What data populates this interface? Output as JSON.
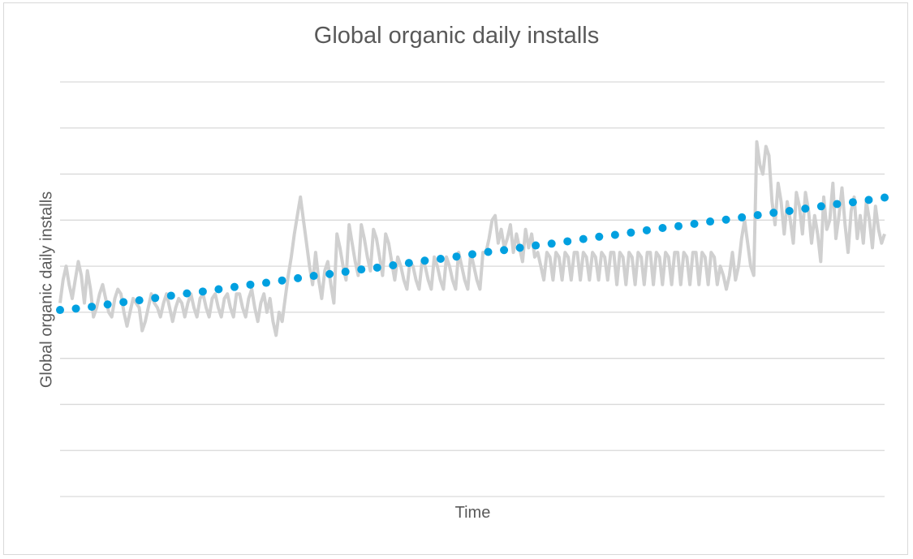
{
  "chart_data": {
    "type": "line",
    "title": "Global organic daily installs",
    "xlabel": "Time",
    "ylabel": "Global organic daily installs",
    "ylim": [
      0,
      9
    ],
    "grid": true,
    "y_tick_labels_shown": false,
    "x_tick_labels_shown": false,
    "legend": "none",
    "series": [
      {
        "style": "solid",
        "color": "#d0d0d0",
        "values": [
          4.2,
          4.7,
          5.0,
          4.6,
          4.3,
          4.7,
          5.1,
          4.8,
          4.2,
          4.9,
          4.5,
          3.9,
          4.1,
          4.4,
          4.6,
          4.3,
          4.0,
          3.9,
          4.3,
          4.5,
          4.4,
          4.0,
          3.7,
          4.0,
          4.3,
          4.2,
          4.1,
          3.6,
          3.8,
          4.1,
          4.4,
          4.2,
          4.1,
          3.9,
          4.2,
          4.4,
          4.1,
          3.8,
          4.1,
          4.3,
          4.2,
          3.9,
          4.2,
          4.4,
          4.1,
          3.9,
          4.3,
          4.4,
          4.1,
          3.9,
          4.3,
          4.4,
          4.1,
          3.9,
          4.3,
          4.4,
          4.1,
          3.9,
          4.4,
          4.4,
          4.1,
          3.9,
          4.3,
          4.5,
          4.1,
          3.8,
          4.2,
          4.4,
          4.0,
          4.3,
          3.8,
          3.5,
          4.0,
          3.8,
          4.3,
          4.8,
          5.2,
          5.7,
          6.1,
          6.5,
          6.0,
          5.5,
          5.0,
          4.6,
          5.3,
          4.7,
          4.3,
          4.9,
          5.1,
          4.6,
          4.2,
          5.7,
          5.4,
          5.0,
          4.7,
          5.9,
          5.5,
          5.1,
          4.8,
          5.9,
          5.6,
          5.2,
          4.9,
          5.8,
          5.6,
          5.2,
          4.8,
          5.7,
          5.5,
          5.1,
          4.7,
          5.2,
          5.0,
          4.7,
          4.5,
          5.1,
          5.0,
          4.7,
          4.5,
          5.1,
          5.0,
          4.7,
          4.5,
          5.2,
          5.0,
          4.7,
          4.5,
          5.2,
          5.0,
          4.7,
          4.5,
          5.3,
          5.0,
          4.7,
          4.5,
          5.3,
          5.0,
          4.7,
          4.5,
          5.3,
          5.3,
          5.6,
          6.0,
          6.1,
          5.5,
          5.8,
          5.4,
          5.6,
          5.9,
          5.3,
          5.7,
          5.4,
          5.1,
          5.8,
          5.4,
          5.7,
          5.2,
          5.3,
          5.0,
          4.7,
          5.3,
          5.2,
          4.7,
          5.3,
          5.2,
          4.7,
          5.3,
          5.2,
          4.7,
          5.3,
          5.3,
          4.7,
          5.3,
          5.2,
          4.7,
          5.3,
          5.2,
          4.7,
          5.3,
          5.2,
          4.7,
          5.3,
          5.3,
          4.6,
          5.3,
          5.2,
          4.6,
          5.3,
          5.2,
          4.6,
          5.3,
          5.2,
          4.6,
          5.3,
          5.3,
          4.6,
          5.3,
          5.2,
          4.6,
          5.3,
          5.2,
          4.6,
          5.3,
          5.3,
          4.6,
          5.3,
          5.2,
          4.6,
          5.3,
          5.3,
          4.6,
          5.3,
          5.2,
          4.6,
          5.3,
          5.2,
          4.6,
          5.0,
          4.8,
          4.5,
          4.8,
          5.3,
          4.7,
          5.0,
          5.6,
          6.0,
          5.5,
          5.0,
          4.8,
          7.7,
          7.2,
          7.0,
          7.6,
          7.4,
          6.4,
          5.9,
          6.8,
          6.4,
          5.7,
          6.4,
          6.0,
          5.5,
          6.6,
          6.3,
          5.7,
          6.6,
          6.2,
          5.5,
          6.1,
          5.7,
          5.1,
          6.5,
          5.8,
          6.0,
          6.8,
          5.6,
          6.1,
          6.7,
          5.9,
          5.3,
          6.2,
          6.5,
          5.6,
          6.1,
          5.5,
          6.4,
          6.0,
          5.4,
          6.3,
          5.8,
          5.5,
          5.7
        ]
      },
      {
        "style": "dotted",
        "color": "#00a0e0",
        "values": [
          4.05,
          4.08,
          4.12,
          4.17,
          4.22,
          4.26,
          4.31,
          4.36,
          4.41,
          4.45,
          4.5,
          4.55,
          4.6,
          4.64,
          4.69,
          4.74,
          4.79,
          4.83,
          4.88,
          4.93,
          4.97,
          5.02,
          5.07,
          5.12,
          5.16,
          5.21,
          5.26,
          5.31,
          5.35,
          5.4,
          5.45,
          5.49,
          5.54,
          5.59,
          5.64,
          5.68,
          5.73,
          5.78,
          5.83,
          5.87,
          5.92,
          5.97,
          6.01,
          6.06,
          6.11,
          6.16,
          6.2,
          6.25,
          6.3,
          6.35,
          6.39,
          6.44,
          6.49
        ]
      }
    ]
  }
}
